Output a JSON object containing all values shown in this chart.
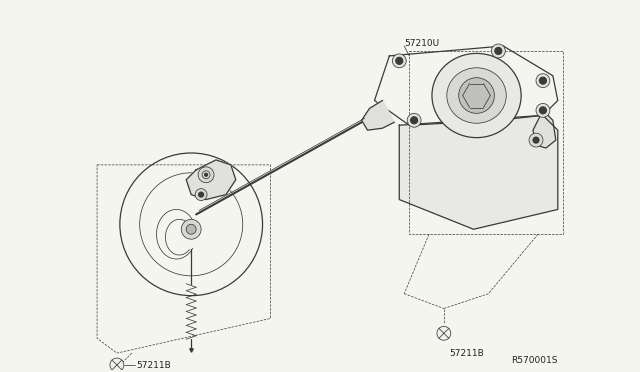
{
  "bg_color": "#f5f5f0",
  "line_color": "#3a3a3a",
  "label_color": "#222222",
  "labels": {
    "part1": "57210U",
    "part2a": "57211B",
    "part2b": "57211B",
    "ref": "R570001S"
  },
  "figsize": [
    6.4,
    3.72
  ],
  "dpi": 100
}
